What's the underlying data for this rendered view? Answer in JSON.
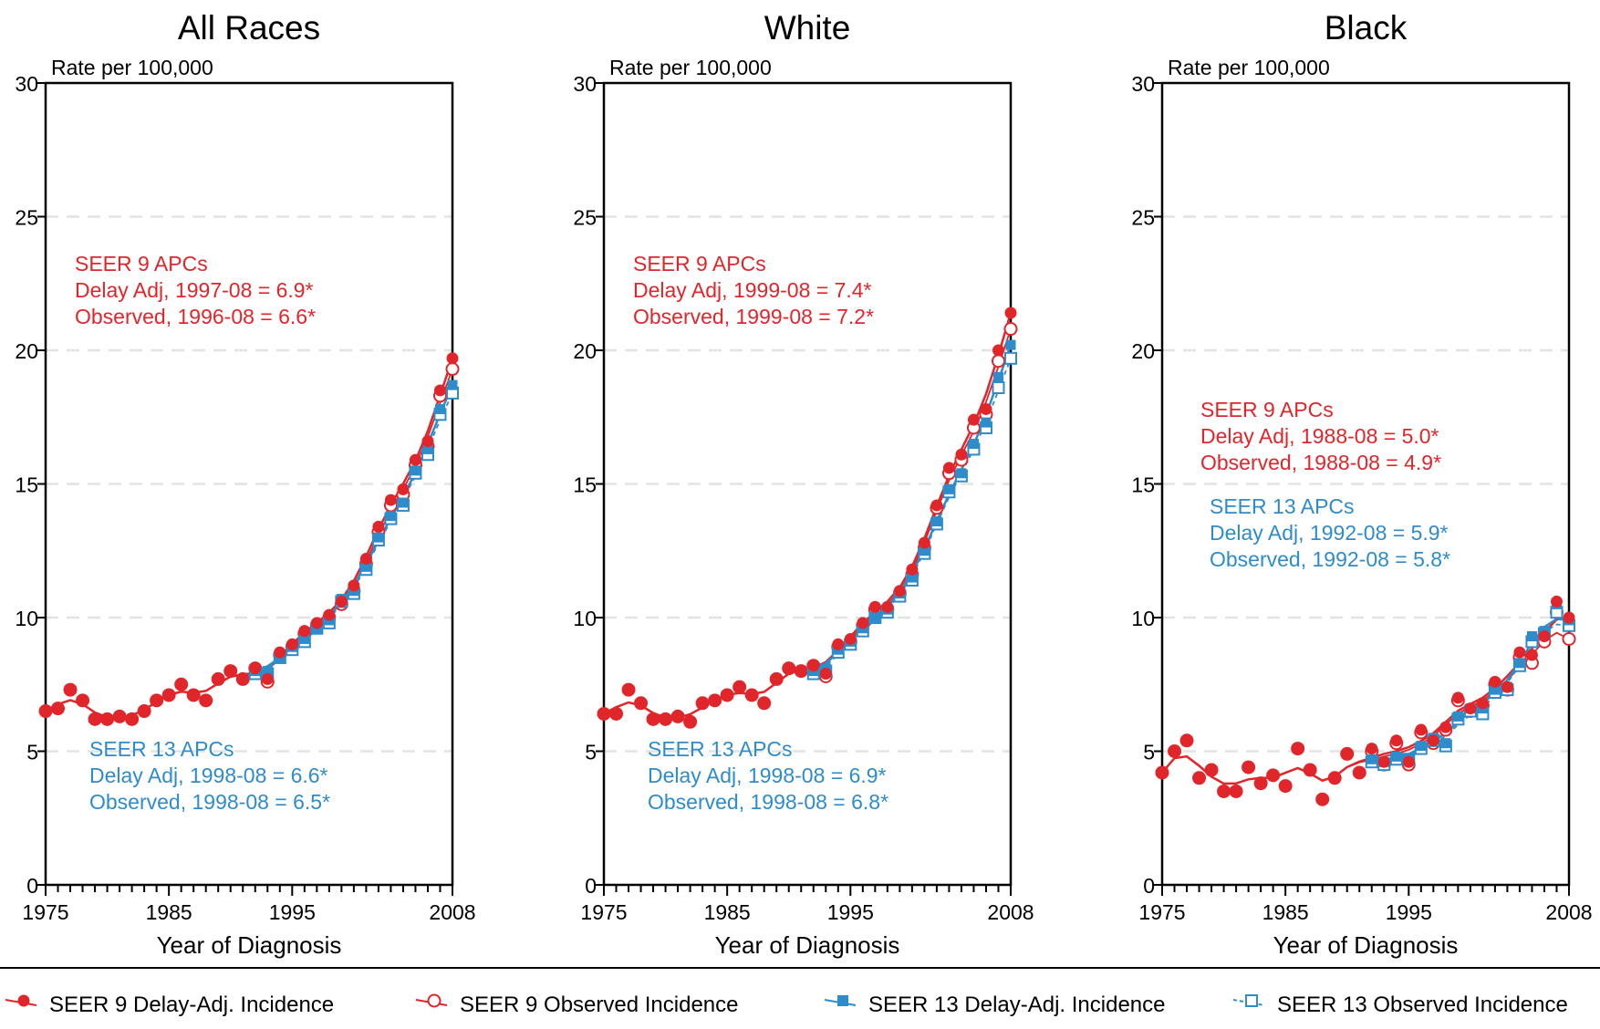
{
  "colors": {
    "seer9": "#e1262b",
    "seer13": "#2e8ccb",
    "grid": "#e3e3e3",
    "axis": "#000000"
  },
  "legend": {
    "placement": "bottom",
    "items": [
      {
        "label": "SEER 9 Delay-Adj. Incidence",
        "icon": "filled-circle-icon"
      },
      {
        "label": "SEER 9 Observed Incidence",
        "icon": "open-circle-icon"
      },
      {
        "label": "SEER 13 Delay-Adj. Incidence",
        "icon": "filled-square-icon"
      },
      {
        "label": "SEER 13 Observed Incidence",
        "icon": "open-square-icon"
      }
    ]
  },
  "chart_data": [
    {
      "type": "line",
      "title": "All Races",
      "ylabel": "Rate per 100,000",
      "xlabel": "Year of Diagnosis",
      "xlim": [
        1975,
        2008
      ],
      "ylim": [
        0,
        30
      ],
      "x_ticks": [
        "1975",
        "1985",
        "1995",
        "2008"
      ],
      "y_ticks": [
        "0",
        "5",
        "10",
        "15",
        "20",
        "25",
        "30"
      ],
      "grid": "horizontal dashed",
      "annotations": [
        {
          "group": "seer9",
          "anchor": "upper-left",
          "lines": [
            "SEER 9 APCs",
            "Delay Adj, 1997-08 = 6.9*",
            "Observed, 1996-08 = 6.6*"
          ]
        },
        {
          "group": "seer13",
          "anchor": "lower-left",
          "lines": [
            "SEER 13 APCs",
            "Delay Adj, 1998-08 = 6.6*",
            "Observed, 1998-08 = 6.5*"
          ]
        }
      ],
      "series": [
        {
          "name": "SEER 9 Delay-Adj. Incidence",
          "x": [
            1975,
            1976,
            1977,
            1978,
            1979,
            1980,
            1981,
            1982,
            1983,
            1984,
            1985,
            1986,
            1987,
            1988,
            1989,
            1990,
            1991,
            1992,
            1993,
            1994,
            1995,
            1996,
            1997,
            1998,
            1999,
            2000,
            2001,
            2002,
            2003,
            2004,
            2005,
            2006,
            2007,
            2008
          ],
          "y": [
            6.5,
            6.6,
            7.3,
            6.9,
            6.2,
            6.2,
            6.3,
            6.2,
            6.5,
            6.9,
            7.1,
            7.5,
            7.1,
            6.9,
            7.7,
            8.0,
            7.7,
            8.1,
            7.7,
            8.7,
            9.0,
            9.5,
            9.8,
            10.1,
            10.6,
            11.2,
            12.2,
            13.4,
            14.4,
            14.8,
            15.9,
            16.6,
            18.5,
            19.7
          ]
        },
        {
          "name": "SEER 9 Observed Incidence",
          "x": [
            1975,
            1976,
            1977,
            1978,
            1979,
            1980,
            1981,
            1982,
            1983,
            1984,
            1985,
            1986,
            1987,
            1988,
            1989,
            1990,
            1991,
            1992,
            1993,
            1994,
            1995,
            1996,
            1997,
            1998,
            1999,
            2000,
            2001,
            2002,
            2003,
            2004,
            2005,
            2006,
            2007,
            2008
          ],
          "y": [
            6.5,
            6.6,
            7.3,
            6.9,
            6.2,
            6.2,
            6.3,
            6.2,
            6.5,
            6.9,
            7.1,
            7.5,
            7.1,
            6.9,
            7.7,
            8.0,
            7.7,
            8.1,
            7.6,
            8.6,
            8.9,
            9.4,
            9.7,
            10.0,
            10.5,
            11.0,
            12.0,
            13.2,
            14.2,
            14.6,
            15.7,
            16.4,
            18.3,
            19.3
          ]
        },
        {
          "name": "SEER 13 Delay-Adj. Incidence",
          "x": [
            1992,
            1993,
            1994,
            1995,
            1996,
            1997,
            1998,
            1999,
            2000,
            2001,
            2002,
            2003,
            2004,
            2005,
            2006,
            2007,
            2008
          ],
          "y": [
            8.0,
            8.0,
            8.5,
            8.9,
            9.2,
            9.6,
            9.9,
            10.7,
            11.0,
            11.9,
            13.0,
            13.8,
            14.3,
            15.5,
            16.3,
            17.8,
            18.7
          ]
        },
        {
          "name": "SEER 13 Observed Incidence",
          "x": [
            1992,
            1993,
            1994,
            1995,
            1996,
            1997,
            1998,
            1999,
            2000,
            2001,
            2002,
            2003,
            2004,
            2005,
            2006,
            2007,
            2008
          ],
          "y": [
            7.9,
            7.9,
            8.5,
            8.8,
            9.1,
            9.6,
            9.8,
            10.6,
            10.9,
            11.8,
            12.9,
            13.7,
            14.2,
            15.4,
            16.1,
            17.6,
            18.4
          ]
        }
      ]
    },
    {
      "type": "line",
      "title": "White",
      "ylabel": "Rate per 100,000",
      "xlabel": "Year of Diagnosis",
      "xlim": [
        1975,
        2008
      ],
      "ylim": [
        0,
        30
      ],
      "x_ticks": [
        "1975",
        "1985",
        "1995",
        "2008"
      ],
      "y_ticks": [
        "0",
        "5",
        "10",
        "15",
        "20",
        "25",
        "30"
      ],
      "grid": "horizontal dashed",
      "annotations": [
        {
          "group": "seer9",
          "anchor": "upper-left",
          "lines": [
            "SEER 9 APCs",
            "Delay Adj, 1999-08 = 7.4*",
            "Observed, 1999-08 = 7.2*"
          ]
        },
        {
          "group": "seer13",
          "anchor": "lower-left",
          "lines": [
            "SEER 13 APCs",
            "Delay Adj, 1998-08 = 6.9*",
            "Observed, 1998-08 = 6.8*"
          ]
        }
      ],
      "series": [
        {
          "name": "SEER 9 Delay-Adj. Incidence",
          "x": [
            1975,
            1976,
            1977,
            1978,
            1979,
            1980,
            1981,
            1982,
            1983,
            1984,
            1985,
            1986,
            1987,
            1988,
            1989,
            1990,
            1991,
            1992,
            1993,
            1994,
            1995,
            1996,
            1997,
            1998,
            1999,
            2000,
            2001,
            2002,
            2003,
            2004,
            2005,
            2006,
            2007,
            2008
          ],
          "y": [
            6.4,
            6.4,
            7.3,
            6.8,
            6.2,
            6.2,
            6.3,
            6.1,
            6.8,
            6.9,
            7.1,
            7.4,
            7.1,
            6.8,
            7.7,
            8.1,
            8.0,
            8.2,
            7.9,
            9.0,
            9.2,
            9.8,
            10.4,
            10.4,
            11.0,
            11.8,
            12.8,
            14.2,
            15.6,
            16.1,
            17.4,
            17.8,
            20.0,
            21.4
          ]
        },
        {
          "name": "SEER 9 Observed Incidence",
          "x": [
            1975,
            1976,
            1977,
            1978,
            1979,
            1980,
            1981,
            1982,
            1983,
            1984,
            1985,
            1986,
            1987,
            1988,
            1989,
            1990,
            1991,
            1992,
            1993,
            1994,
            1995,
            1996,
            1997,
            1998,
            1999,
            2000,
            2001,
            2002,
            2003,
            2004,
            2005,
            2006,
            2007,
            2008
          ],
          "y": [
            6.4,
            6.4,
            7.3,
            6.8,
            6.2,
            6.2,
            6.3,
            6.1,
            6.8,
            6.9,
            7.1,
            7.4,
            7.1,
            6.8,
            7.7,
            8.1,
            8.0,
            8.2,
            7.8,
            8.9,
            9.1,
            9.7,
            10.3,
            10.3,
            10.9,
            11.6,
            12.6,
            14.1,
            15.4,
            15.9,
            17.1,
            17.6,
            19.6,
            20.8
          ]
        },
        {
          "name": "SEER 13 Delay-Adj. Incidence",
          "x": [
            1992,
            1993,
            1994,
            1995,
            1996,
            1997,
            1998,
            1999,
            2000,
            2001,
            2002,
            2003,
            2004,
            2005,
            2006,
            2007,
            2008
          ],
          "y": [
            8.0,
            8.1,
            8.8,
            9.1,
            9.6,
            10.0,
            10.3,
            10.9,
            11.5,
            12.5,
            13.6,
            14.8,
            15.4,
            16.5,
            17.3,
            19.0,
            20.2
          ]
        },
        {
          "name": "SEER 13 Observed Incidence",
          "x": [
            1992,
            1993,
            1994,
            1995,
            1996,
            1997,
            1998,
            1999,
            2000,
            2001,
            2002,
            2003,
            2004,
            2005,
            2006,
            2007,
            2008
          ],
          "y": [
            7.9,
            8.0,
            8.7,
            9.0,
            9.5,
            10.0,
            10.2,
            10.8,
            11.4,
            12.4,
            13.5,
            14.7,
            15.3,
            16.3,
            17.1,
            18.6,
            19.7
          ]
        }
      ]
    },
    {
      "type": "line",
      "title": "Black",
      "ylabel": "Rate per 100,000",
      "xlabel": "Year of Diagnosis",
      "xlim": [
        1975,
        2008
      ],
      "ylim": [
        0,
        30
      ],
      "x_ticks": [
        "1975",
        "1985",
        "1995",
        "2008"
      ],
      "y_ticks": [
        "0",
        "5",
        "10",
        "15",
        "20",
        "25",
        "30"
      ],
      "grid": "horizontal dashed",
      "annotations": [
        {
          "group": "seer9",
          "anchor": "middle-left",
          "lines": [
            "SEER 9 APCs",
            "Delay Adj, 1988-08 = 5.0*",
            "Observed, 1988-08 = 4.9*"
          ]
        },
        {
          "group": "seer13",
          "anchor": "middle-left",
          "lines": [
            "SEER 13 APCs",
            "Delay Adj, 1992-08 = 5.9*",
            "Observed, 1992-08 = 5.8*"
          ]
        }
      ],
      "series": [
        {
          "name": "SEER 9 Delay-Adj. Incidence",
          "x": [
            1975,
            1976,
            1977,
            1978,
            1979,
            1980,
            1981,
            1982,
            1983,
            1984,
            1985,
            1986,
            1987,
            1988,
            1989,
            1990,
            1991,
            1992,
            1993,
            1994,
            1995,
            1996,
            1997,
            1998,
            1999,
            2000,
            2001,
            2002,
            2003,
            2004,
            2005,
            2006,
            2007,
            2008
          ],
          "y": [
            4.2,
            5.0,
            5.4,
            4.0,
            4.3,
            3.5,
            3.5,
            4.4,
            3.8,
            4.1,
            3.7,
            5.1,
            4.3,
            3.2,
            4.0,
            4.9,
            4.2,
            5.1,
            4.6,
            5.4,
            4.6,
            5.8,
            5.4,
            5.9,
            7.0,
            6.6,
            6.8,
            7.6,
            7.4,
            8.7,
            8.6,
            9.3,
            10.6,
            10.0
          ]
        },
        {
          "name": "SEER 9 Observed Incidence",
          "x": [
            1975,
            1976,
            1977,
            1978,
            1979,
            1980,
            1981,
            1982,
            1983,
            1984,
            1985,
            1986,
            1987,
            1988,
            1989,
            1990,
            1991,
            1992,
            1993,
            1994,
            1995,
            1996,
            1997,
            1998,
            1999,
            2000,
            2001,
            2002,
            2003,
            2004,
            2005,
            2006,
            2007,
            2008
          ],
          "y": [
            4.2,
            5.0,
            5.4,
            4.0,
            4.3,
            3.5,
            3.5,
            4.4,
            3.8,
            4.1,
            3.7,
            5.1,
            4.3,
            3.2,
            4.0,
            4.9,
            4.2,
            5.0,
            4.5,
            5.3,
            4.5,
            5.7,
            5.3,
            5.8,
            6.9,
            6.5,
            6.7,
            7.5,
            7.3,
            8.5,
            8.3,
            9.1,
            10.2,
            9.2
          ]
        },
        {
          "name": "SEER 13 Delay-Adj. Incidence",
          "x": [
            1992,
            1993,
            1994,
            1995,
            1996,
            1997,
            1998,
            1999,
            2000,
            2001,
            2002,
            2003,
            2004,
            2005,
            2006,
            2007,
            2008
          ],
          "y": [
            4.7,
            4.6,
            4.8,
            4.7,
            5.2,
            5.5,
            5.3,
            6.3,
            6.6,
            6.6,
            7.3,
            7.4,
            8.3,
            9.3,
            9.5,
            10.5,
            9.9
          ]
        },
        {
          "name": "SEER 13 Observed Incidence",
          "x": [
            1992,
            1993,
            1994,
            1995,
            1996,
            1997,
            1998,
            1999,
            2000,
            2001,
            2002,
            2003,
            2004,
            2005,
            2006,
            2007,
            2008
          ],
          "y": [
            4.6,
            4.5,
            4.7,
            4.7,
            5.1,
            5.4,
            5.2,
            6.2,
            6.5,
            6.4,
            7.2,
            7.3,
            8.2,
            9.1,
            9.4,
            10.2,
            9.7
          ]
        }
      ]
    }
  ]
}
